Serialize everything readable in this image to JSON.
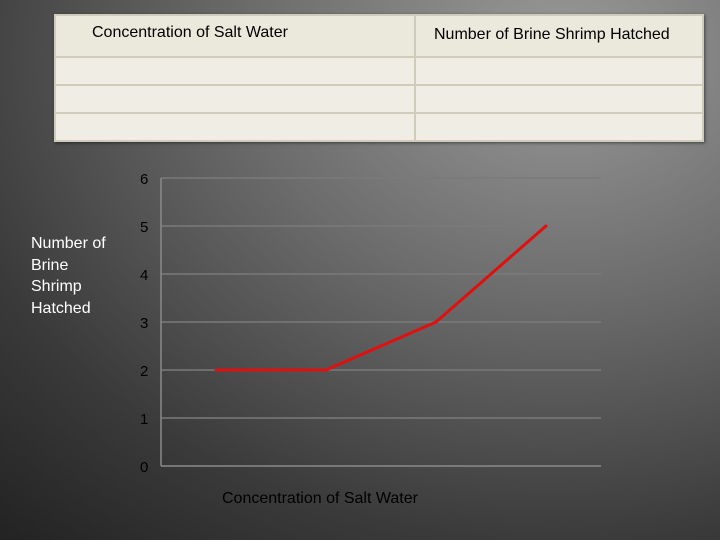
{
  "table": {
    "headers": [
      "Concentration of Salt Water",
      "Number of Brine Shrimp Hatched"
    ],
    "rows": [
      [
        "",
        ""
      ],
      [
        "",
        ""
      ],
      [
        "",
        ""
      ]
    ]
  },
  "chart_data": {
    "type": "line",
    "title": "",
    "xlabel": "Concentration of Salt Water",
    "ylabel": "Number of Brine Shrimp Hatched",
    "ylim": [
      0,
      6
    ],
    "y_ticks": [
      "0",
      "1",
      "2",
      "3",
      "4",
      "5",
      "6"
    ],
    "grid": true,
    "x": [
      1,
      2,
      3,
      4
    ],
    "series": [
      {
        "values": [
          2,
          2,
          3,
          5
        ],
        "color": "#e01010"
      }
    ]
  }
}
